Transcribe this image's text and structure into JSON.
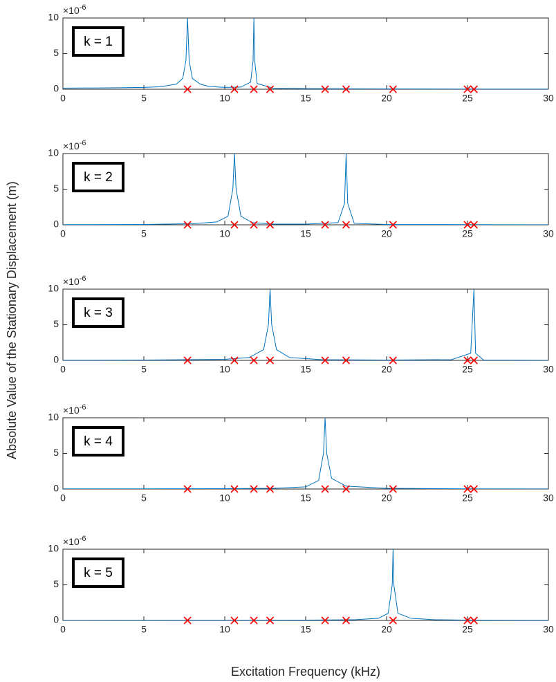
{
  "xlabel": "Excitation Frequency  (kHz)",
  "ylabel": "Absolute Value of the Stationary Displacement  (m)",
  "chart_data": [
    {
      "type": "line",
      "annotation": "k = 1",
      "yscale_base": "×10",
      "yscale_exponent": "-6",
      "xlim": [
        0,
        30
      ],
      "ylim": [
        0,
        10
      ],
      "xticks": [
        0,
        5,
        10,
        15,
        20,
        25,
        30
      ],
      "yticks": [
        0,
        5,
        10
      ],
      "series": [
        {
          "color": "#0072bd",
          "x": [
            0,
            3,
            5,
            6,
            7,
            7.4,
            7.6,
            7.7,
            7.8,
            8,
            8.5,
            9,
            10,
            11,
            11.6,
            11.75,
            11.8,
            11.85,
            12,
            13,
            15,
            20,
            25,
            30
          ],
          "values": [
            0.15,
            0.2,
            0.25,
            0.35,
            0.7,
            1.5,
            4,
            10,
            4,
            1.5,
            0.7,
            0.4,
            0.25,
            0.3,
            1,
            4,
            10,
            4,
            0.8,
            0.15,
            0.08,
            0.05,
            0.03,
            0.02
          ]
        },
        {
          "color": "#ff0000",
          "marker": "x",
          "x": [
            7.7,
            10.6,
            11.8,
            12.8,
            16.2,
            17.5,
            20.4,
            25.0,
            25.4
          ],
          "values": [
            0,
            0,
            0,
            0,
            0,
            0,
            0,
            0,
            0
          ]
        }
      ]
    },
    {
      "type": "line",
      "annotation": "k = 2",
      "yscale_base": "×10",
      "yscale_exponent": "-6",
      "xlim": [
        0,
        30
      ],
      "ylim": [
        0,
        10
      ],
      "xticks": [
        0,
        5,
        10,
        15,
        20,
        25,
        30
      ],
      "yticks": [
        0,
        5,
        10
      ],
      "series": [
        {
          "color": "#0072bd",
          "x": [
            0,
            5,
            8,
            9.5,
            10.2,
            10.5,
            10.6,
            10.7,
            11,
            11.7,
            13,
            15,
            17,
            17.4,
            17.5,
            17.6,
            18,
            20,
            25,
            30
          ],
          "values": [
            0.02,
            0.05,
            0.15,
            0.4,
            1.2,
            5,
            10,
            5,
            1.2,
            0.3,
            0.1,
            0.1,
            0.3,
            3,
            10,
            3,
            0.2,
            0.05,
            0.02,
            0.01
          ]
        },
        {
          "color": "#ff0000",
          "marker": "x",
          "x": [
            7.7,
            10.6,
            11.8,
            12.8,
            16.2,
            17.5,
            20.4,
            25.0,
            25.4
          ],
          "values": [
            0,
            0,
            0,
            0,
            0,
            0,
            0,
            0,
            0
          ]
        }
      ]
    },
    {
      "type": "line",
      "annotation": "k = 3",
      "yscale_base": "×10",
      "yscale_exponent": "-6",
      "xlim": [
        0,
        30
      ],
      "ylim": [
        0,
        10
      ],
      "xticks": [
        0,
        5,
        10,
        15,
        20,
        25,
        30
      ],
      "yticks": [
        0,
        5,
        10
      ],
      "series": [
        {
          "color": "#0072bd",
          "x": [
            0,
            5,
            10,
            11.5,
            12.4,
            12.7,
            12.8,
            12.9,
            13.2,
            14,
            16,
            20,
            24,
            25.2,
            25.4,
            25.5,
            26,
            30
          ],
          "values": [
            0.02,
            0.05,
            0.15,
            0.4,
            1.5,
            5,
            10,
            5,
            1.5,
            0.4,
            0.1,
            0.05,
            0.1,
            1,
            10,
            1,
            0.05,
            0.01
          ]
        },
        {
          "color": "#ff0000",
          "marker": "x",
          "x": [
            7.7,
            10.6,
            11.8,
            12.8,
            16.2,
            17.5,
            20.4,
            25.0,
            25.4
          ],
          "values": [
            0,
            0,
            0,
            0,
            0,
            0,
            0,
            0,
            0
          ]
        }
      ]
    },
    {
      "type": "line",
      "annotation": "k = 4",
      "yscale_base": "×10",
      "yscale_exponent": "-6",
      "xlim": [
        0,
        30
      ],
      "ylim": [
        0,
        10
      ],
      "xticks": [
        0,
        5,
        10,
        15,
        20,
        25,
        30
      ],
      "yticks": [
        0,
        5,
        10
      ],
      "series": [
        {
          "color": "#0072bd",
          "x": [
            0,
            5,
            10,
            13,
            15,
            15.8,
            16.1,
            16.2,
            16.3,
            16.6,
            17.5,
            20,
            25,
            30
          ],
          "values": [
            0.02,
            0.03,
            0.05,
            0.1,
            0.3,
            1.2,
            5,
            10,
            5,
            1.5,
            0.4,
            0.1,
            0.03,
            0.01
          ]
        },
        {
          "color": "#ff0000",
          "marker": "x",
          "x": [
            7.7,
            10.6,
            11.8,
            12.8,
            16.2,
            17.5,
            20.4,
            25.0,
            25.4
          ],
          "values": [
            0,
            0,
            0,
            0,
            0,
            0,
            0,
            0,
            0
          ]
        }
      ]
    },
    {
      "type": "line",
      "annotation": "k = 5",
      "yscale_base": "×10",
      "yscale_exponent": "-6",
      "xlim": [
        0,
        30
      ],
      "ylim": [
        0,
        10
      ],
      "xticks": [
        0,
        5,
        10,
        15,
        20,
        25,
        30
      ],
      "yticks": [
        0,
        5,
        10
      ],
      "series": [
        {
          "color": "#0072bd",
          "x": [
            0,
            10,
            15,
            18,
            19.5,
            20.1,
            20.35,
            20.4,
            20.45,
            20.7,
            21.5,
            23,
            25,
            30
          ],
          "values": [
            0.01,
            0.03,
            0.05,
            0.1,
            0.3,
            1,
            5,
            10,
            5,
            1,
            0.3,
            0.1,
            0.05,
            0.02
          ]
        },
        {
          "color": "#ff0000",
          "marker": "x",
          "x": [
            7.7,
            10.6,
            11.8,
            12.8,
            16.2,
            17.5,
            20.4,
            25.0,
            25.4
          ],
          "values": [
            0,
            0,
            0,
            0,
            0,
            0,
            0,
            0,
            0
          ]
        }
      ]
    }
  ]
}
